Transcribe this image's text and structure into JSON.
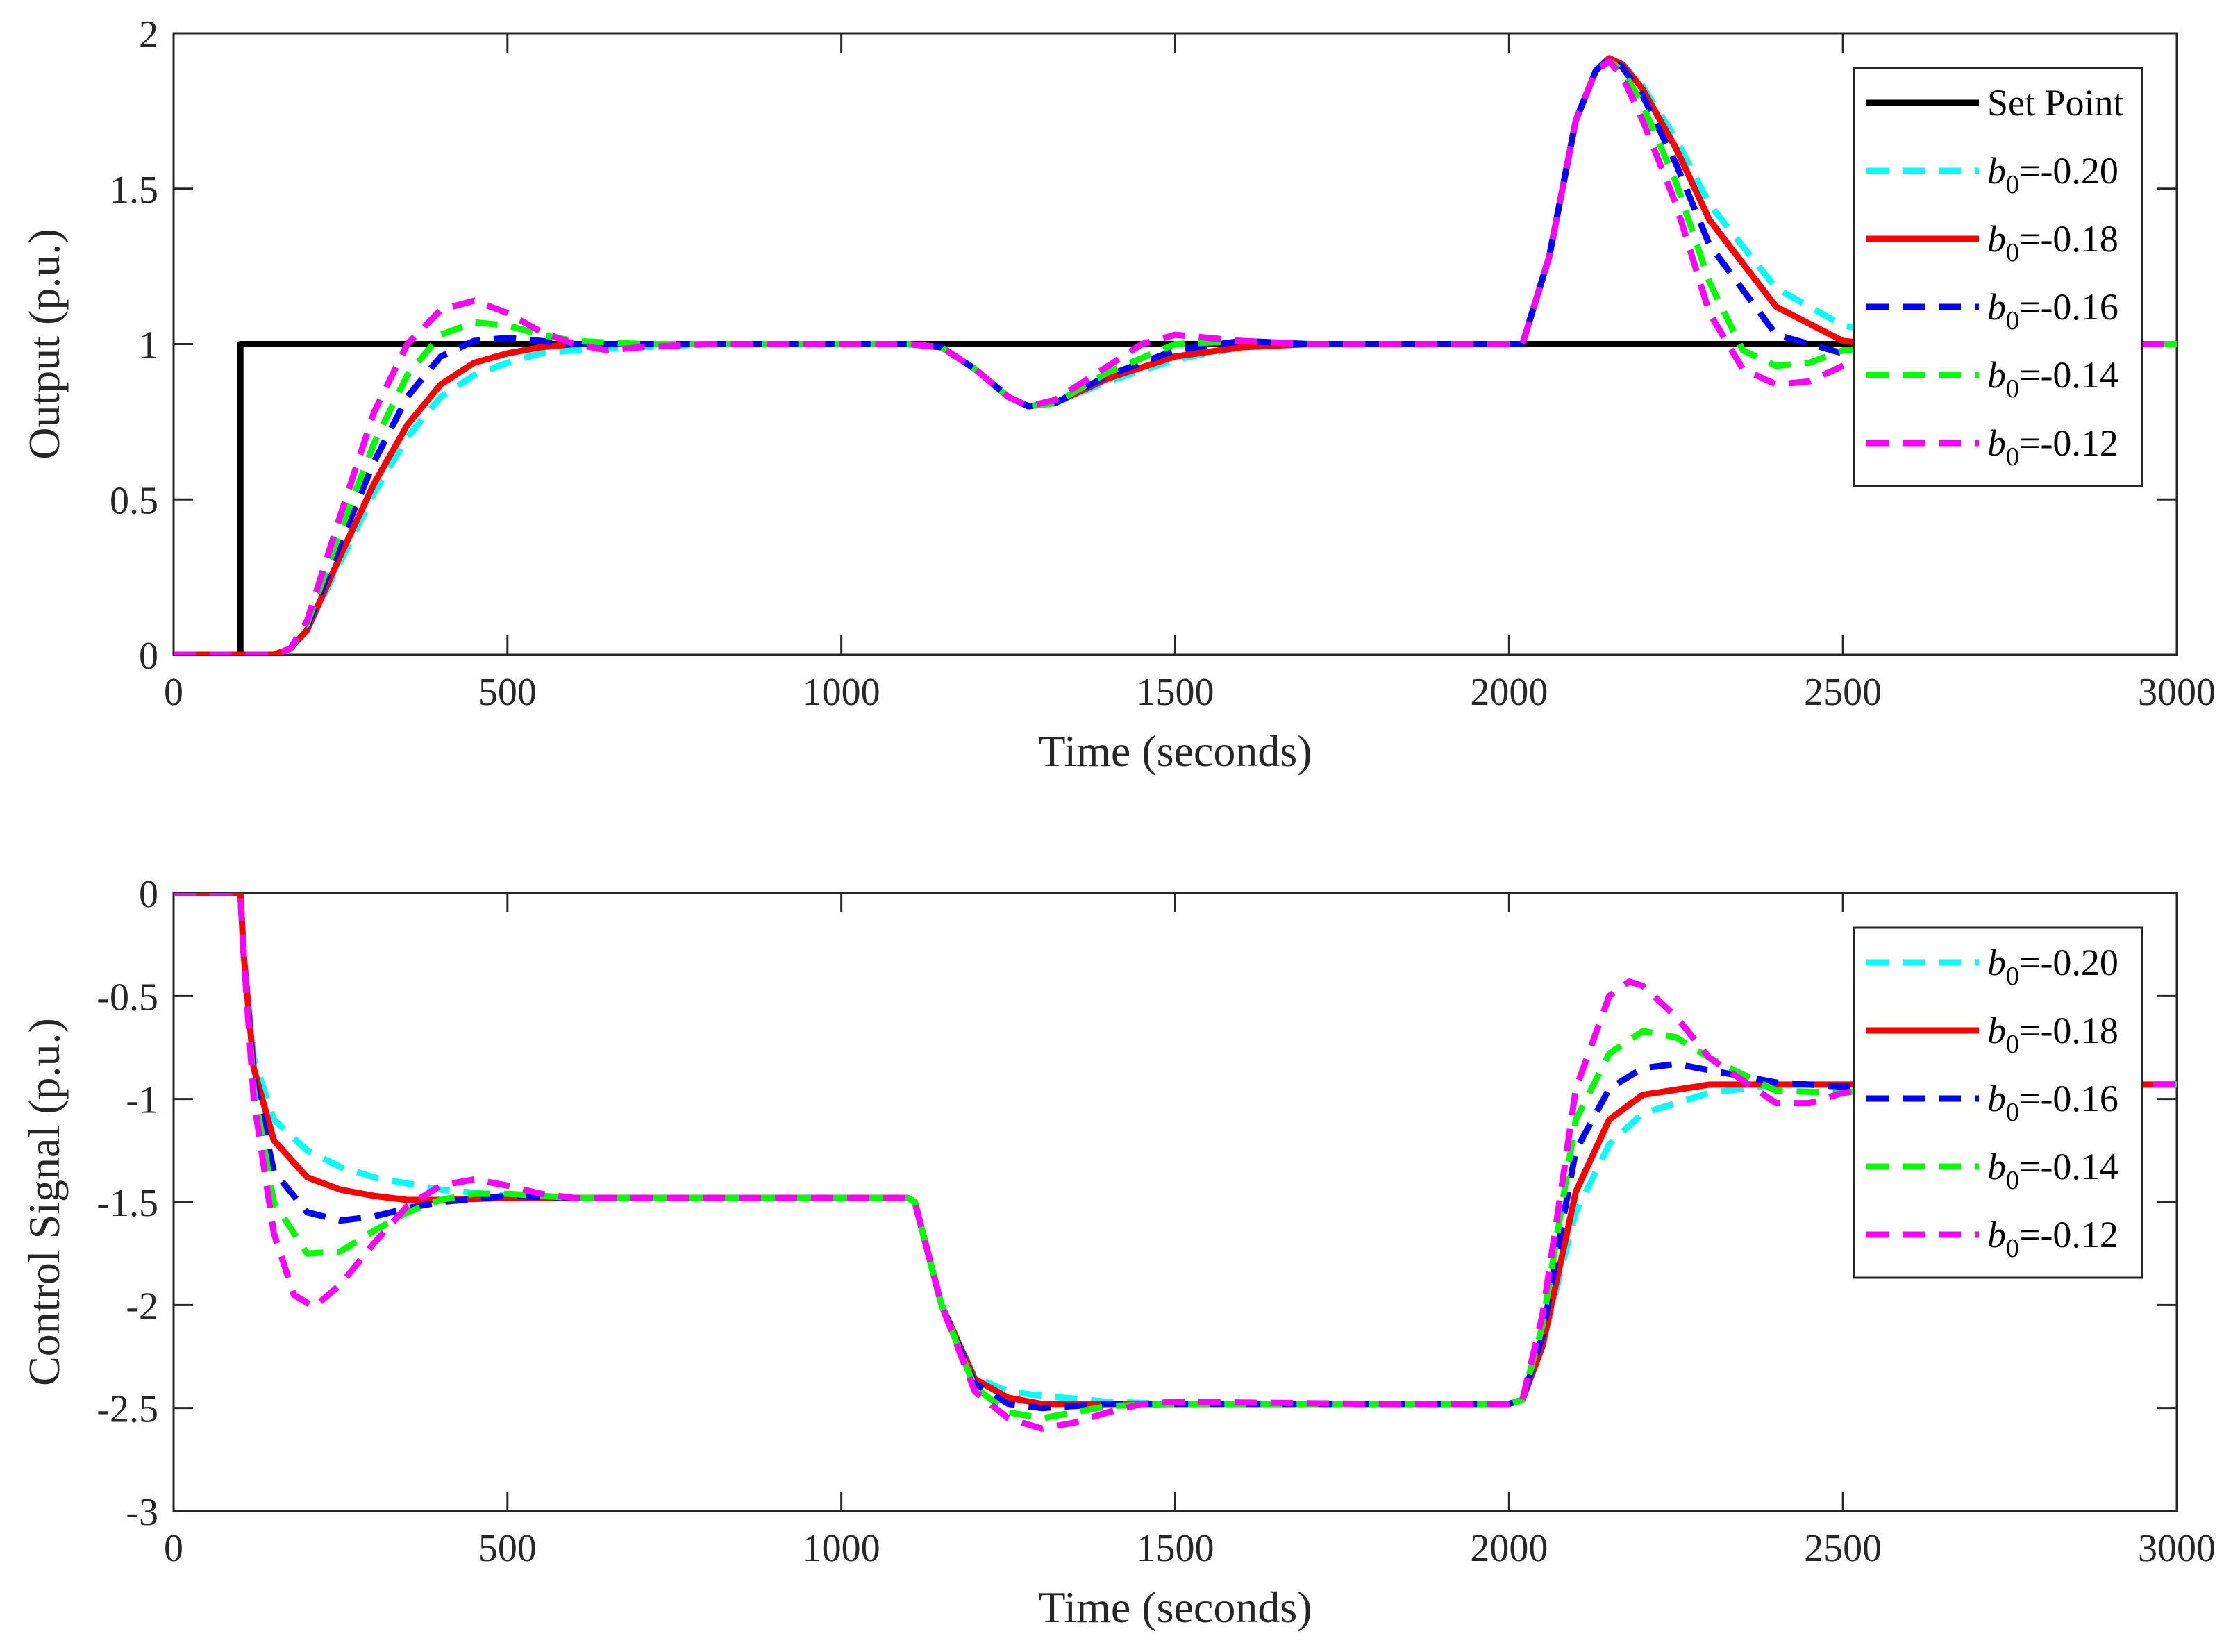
{
  "chart_data": [
    {
      "type": "line",
      "id": "output",
      "xlabel": "Time (seconds)",
      "ylabel": "Output (p.u.)",
      "xlim": [
        0,
        3000
      ],
      "ylim": [
        0,
        2
      ],
      "xticks": [
        0,
        500,
        1000,
        1500,
        2000,
        2500,
        3000
      ],
      "yticks": [
        0,
        0.5,
        1,
        1.5,
        2
      ],
      "xtick_labels": [
        "0",
        "500",
        "1000",
        "1500",
        "2000",
        "2500",
        "3000"
      ],
      "ytick_labels": [
        "0",
        "0.5",
        "1",
        "1.5",
        "2"
      ],
      "grid": false,
      "legend_position": "top-right",
      "series": [
        {
          "name": "Set Point",
          "legend_var": "",
          "legend_sub": "",
          "legend_val": "Set Point",
          "color": "#000000",
          "style": "solid",
          "x": [
            0,
            100,
            100,
            3000
          ],
          "y": [
            0,
            0,
            1,
            1
          ]
        },
        {
          "name": "b0=-0.20",
          "legend_var": "b",
          "legend_sub": "0",
          "legend_val": "=-0.20",
          "color": "#00FFFF",
          "style": "dashed",
          "x": [
            0,
            150,
            175,
            200,
            250,
            300,
            350,
            400,
            450,
            500,
            550,
            600,
            700,
            800,
            900,
            1000,
            1100,
            1150,
            1200,
            1250,
            1280,
            1320,
            1400,
            1500,
            1600,
            1700,
            1800,
            1900,
            2000,
            2020,
            2060,
            2100,
            2130,
            2150,
            2170,
            2200,
            2250,
            2300,
            2400,
            2500,
            2600,
            2800,
            3000
          ],
          "y": [
            0,
            0,
            0.02,
            0.08,
            0.3,
            0.52,
            0.7,
            0.83,
            0.9,
            0.94,
            0.97,
            0.98,
            0.99,
            1.0,
            1.0,
            1.0,
            1.0,
            0.99,
            0.92,
            0.83,
            0.8,
            0.81,
            0.88,
            0.95,
            0.99,
            1.0,
            1.0,
            1.0,
            1.0,
            1.0,
            1.28,
            1.72,
            1.88,
            1.92,
            1.9,
            1.83,
            1.66,
            1.45,
            1.18,
            1.06,
            1.02,
            1.0,
            1.0
          ]
        },
        {
          "name": "b0=-0.18",
          "legend_var": "b",
          "legend_sub": "0",
          "legend_val": "=-0.18",
          "color": "#FF0000",
          "style": "solid",
          "x": [
            0,
            150,
            175,
            200,
            250,
            300,
            350,
            400,
            450,
            500,
            550,
            600,
            700,
            800,
            900,
            1000,
            1100,
            1150,
            1200,
            1250,
            1280,
            1320,
            1400,
            1500,
            1600,
            1700,
            1800,
            1900,
            2000,
            2020,
            2060,
            2100,
            2130,
            2150,
            2170,
            2200,
            2250,
            2300,
            2400,
            2500,
            2600,
            2800,
            3000
          ],
          "y": [
            0,
            0,
            0.02,
            0.08,
            0.32,
            0.55,
            0.74,
            0.87,
            0.94,
            0.97,
            0.99,
            1.0,
            1.0,
            1.0,
            1.0,
            1.0,
            1.0,
            0.99,
            0.92,
            0.83,
            0.8,
            0.81,
            0.89,
            0.96,
            0.99,
            1.0,
            1.0,
            1.0,
            1.0,
            1.0,
            1.28,
            1.72,
            1.88,
            1.92,
            1.9,
            1.82,
            1.63,
            1.4,
            1.12,
            1.01,
            0.99,
            1.0,
            1.0
          ]
        },
        {
          "name": "b0=-0.16",
          "legend_var": "b",
          "legend_sub": "0",
          "legend_val": "=-0.16",
          "color": "#0000FF",
          "style": "dashed",
          "x": [
            0,
            150,
            175,
            200,
            250,
            300,
            350,
            400,
            450,
            500,
            550,
            600,
            700,
            800,
            900,
            1000,
            1100,
            1150,
            1200,
            1250,
            1280,
            1320,
            1400,
            1500,
            1600,
            1700,
            1800,
            1900,
            2000,
            2020,
            2060,
            2100,
            2130,
            2150,
            2170,
            2200,
            2250,
            2300,
            2400,
            2500,
            2600,
            2800,
            3000
          ],
          "y": [
            0,
            0,
            0.02,
            0.09,
            0.36,
            0.62,
            0.83,
            0.96,
            1.01,
            1.02,
            1.01,
            1.0,
            1.0,
            1.0,
            1.0,
            1.0,
            1.0,
            0.99,
            0.92,
            0.83,
            0.8,
            0.81,
            0.9,
            0.98,
            1.01,
            1.0,
            1.0,
            1.0,
            1.0,
            1.0,
            1.28,
            1.72,
            1.88,
            1.92,
            1.89,
            1.8,
            1.58,
            1.32,
            1.03,
            0.97,
            0.99,
            1.0,
            1.0
          ]
        },
        {
          "name": "b0=-0.14",
          "legend_var": "b",
          "legend_sub": "0",
          "legend_val": "=-0.14",
          "color": "#00FF00",
          "style": "dashed",
          "x": [
            0,
            150,
            175,
            200,
            250,
            300,
            350,
            400,
            450,
            500,
            550,
            600,
            700,
            800,
            900,
            1000,
            1100,
            1150,
            1200,
            1250,
            1280,
            1320,
            1400,
            1500,
            1600,
            1700,
            1800,
            1900,
            2000,
            2020,
            2060,
            2100,
            2130,
            2150,
            2170,
            2200,
            2250,
            2300,
            2350,
            2400,
            2450,
            2500,
            2600,
            2800,
            3000
          ],
          "y": [
            0,
            0,
            0.02,
            0.1,
            0.4,
            0.68,
            0.9,
            1.03,
            1.07,
            1.06,
            1.03,
            1.01,
            1.0,
            1.0,
            1.0,
            1.0,
            1.0,
            0.99,
            0.92,
            0.83,
            0.8,
            0.81,
            0.91,
            1.0,
            1.01,
            1.0,
            1.0,
            1.0,
            1.0,
            1.0,
            1.28,
            1.72,
            1.88,
            1.91,
            1.88,
            1.77,
            1.52,
            1.2,
            0.98,
            0.93,
            0.94,
            0.98,
            1.0,
            1.0,
            1.0
          ]
        },
        {
          "name": "b0=-0.12",
          "legend_var": "b",
          "legend_sub": "0",
          "legend_val": "=-0.12",
          "color": "#FF00FF",
          "style": "dashed",
          "x": [
            0,
            150,
            175,
            200,
            250,
            300,
            350,
            400,
            450,
            500,
            550,
            600,
            650,
            700,
            800,
            900,
            1000,
            1100,
            1150,
            1200,
            1250,
            1280,
            1320,
            1400,
            1450,
            1500,
            1550,
            1600,
            1700,
            1800,
            1900,
            2000,
            2020,
            2060,
            2100,
            2130,
            2150,
            2170,
            2200,
            2250,
            2300,
            2350,
            2400,
            2450,
            2500,
            2550,
            2600,
            2800,
            3000
          ],
          "y": [
            0,
            0,
            0.02,
            0.11,
            0.45,
            0.78,
            1.0,
            1.11,
            1.14,
            1.1,
            1.04,
            1.0,
            0.98,
            0.99,
            1.0,
            1.0,
            1.0,
            1.0,
            0.99,
            0.92,
            0.83,
            0.8,
            0.82,
            0.93,
            1.0,
            1.03,
            1.02,
            1.01,
            1.0,
            1.0,
            1.0,
            1.0,
            1.0,
            1.28,
            1.72,
            1.88,
            1.91,
            1.86,
            1.72,
            1.45,
            1.1,
            0.92,
            0.87,
            0.88,
            0.93,
            0.98,
            1.0,
            1.0,
            1.0
          ]
        }
      ],
      "legend_items": [
        "Set Point",
        "b0=-0.20",
        "b0=-0.18",
        "b0=-0.16",
        "b0=-0.14",
        "b0=-0.12"
      ]
    },
    {
      "type": "line",
      "id": "control",
      "xlabel": "Time (seconds)",
      "ylabel": "Control Signal (p.u.)",
      "xlim": [
        0,
        3000
      ],
      "ylim": [
        -3,
        0
      ],
      "xticks": [
        0,
        500,
        1000,
        1500,
        2000,
        2500,
        3000
      ],
      "yticks": [
        -3,
        -2.5,
        -2,
        -1.5,
        -1,
        -0.5,
        0
      ],
      "xtick_labels": [
        "0",
        "500",
        "1000",
        "1500",
        "2000",
        "2500",
        "3000"
      ],
      "ytick_labels": [
        "-3",
        "-2.5",
        "-2",
        "-1.5",
        "-1",
        "-0.5",
        "0"
      ],
      "grid": false,
      "legend_position": "top-right",
      "series": [
        {
          "name": "b0=-0.20",
          "legend_var": "b",
          "legend_sub": "0",
          "legend_val": "=-0.20",
          "color": "#00FFFF",
          "style": "dashed",
          "x": [
            0,
            100,
            105,
            120,
            150,
            200,
            250,
            300,
            400,
            500,
            600,
            1000,
            1100,
            1110,
            1150,
            1200,
            1250,
            1300,
            1400,
            1500,
            1800,
            2000,
            2020,
            2050,
            2080,
            2100,
            2150,
            2200,
            2300,
            2400,
            2500,
            2600,
            3000
          ],
          "y": [
            0,
            0,
            -0.3,
            -0.8,
            -1.1,
            -1.25,
            -1.33,
            -1.38,
            -1.44,
            -1.47,
            -1.48,
            -1.48,
            -1.48,
            -1.5,
            -2.0,
            -2.35,
            -2.42,
            -2.44,
            -2.47,
            -2.48,
            -2.48,
            -2.48,
            -2.46,
            -2.2,
            -1.8,
            -1.55,
            -1.22,
            -1.07,
            -0.97,
            -0.93,
            -0.93,
            -0.93,
            -0.93
          ]
        },
        {
          "name": "b0=-0.18",
          "legend_var": "b",
          "legend_sub": "0",
          "legend_val": "=-0.18",
          "color": "#FF0000",
          "style": "solid",
          "x": [
            0,
            100,
            105,
            120,
            150,
            200,
            250,
            300,
            350,
            400,
            500,
            600,
            1000,
            1100,
            1110,
            1150,
            1200,
            1250,
            1300,
            1400,
            1500,
            1800,
            2000,
            2020,
            2050,
            2080,
            2100,
            2150,
            2200,
            2300,
            2400,
            2500,
            2600,
            3000
          ],
          "y": [
            0,
            0,
            -0.3,
            -0.85,
            -1.2,
            -1.38,
            -1.44,
            -1.47,
            -1.49,
            -1.49,
            -1.48,
            -1.48,
            -1.48,
            -1.48,
            -1.5,
            -2.0,
            -2.36,
            -2.45,
            -2.48,
            -2.48,
            -2.48,
            -2.48,
            -2.48,
            -2.46,
            -2.2,
            -1.75,
            -1.45,
            -1.1,
            -0.98,
            -0.93,
            -0.93,
            -0.93,
            -0.93,
            -0.93
          ]
        },
        {
          "name": "b0=-0.16",
          "legend_var": "b",
          "legend_sub": "0",
          "legend_val": "=-0.16",
          "color": "#0000FF",
          "style": "dashed",
          "x": [
            0,
            100,
            105,
            120,
            150,
            200,
            250,
            300,
            350,
            400,
            500,
            600,
            1000,
            1100,
            1110,
            1150,
            1200,
            1250,
            1300,
            1350,
            1400,
            1500,
            1800,
            2000,
            2020,
            2050,
            2080,
            2100,
            2150,
            2200,
            2250,
            2300,
            2400,
            2500,
            2600,
            3000
          ],
          "y": [
            0,
            0,
            -0.3,
            -0.9,
            -1.35,
            -1.55,
            -1.59,
            -1.57,
            -1.53,
            -1.5,
            -1.47,
            -1.48,
            -1.48,
            -1.48,
            -1.5,
            -2.0,
            -2.38,
            -2.48,
            -2.5,
            -2.49,
            -2.48,
            -2.48,
            -2.48,
            -2.48,
            -2.46,
            -2.15,
            -1.6,
            -1.25,
            -0.95,
            -0.85,
            -0.83,
            -0.86,
            -0.92,
            -0.94,
            -0.93,
            -0.93
          ]
        },
        {
          "name": "b0=-0.14",
          "legend_var": "b",
          "legend_sub": "0",
          "legend_val": "=-0.14",
          "color": "#00FF00",
          "style": "dashed",
          "x": [
            0,
            100,
            105,
            120,
            150,
            200,
            250,
            300,
            350,
            400,
            450,
            500,
            600,
            1000,
            1100,
            1110,
            1150,
            1200,
            1250,
            1300,
            1350,
            1400,
            1500,
            1800,
            2000,
            2020,
            2050,
            2080,
            2100,
            2150,
            2200,
            2250,
            2300,
            2400,
            2500,
            2600,
            3000
          ],
          "y": [
            0,
            0,
            -0.3,
            -0.95,
            -1.5,
            -1.75,
            -1.74,
            -1.64,
            -1.55,
            -1.49,
            -1.46,
            -1.46,
            -1.48,
            -1.48,
            -1.48,
            -1.5,
            -2.0,
            -2.4,
            -2.52,
            -2.55,
            -2.52,
            -2.49,
            -2.48,
            -2.48,
            -2.48,
            -2.46,
            -2.1,
            -1.5,
            -1.1,
            -0.78,
            -0.67,
            -0.7,
            -0.8,
            -0.96,
            -0.97,
            -0.93,
            -0.93
          ]
        },
        {
          "name": "b0=-0.12",
          "legend_var": "b",
          "legend_sub": "0",
          "legend_val": "=-0.12",
          "color": "#FF00FF",
          "style": "dashed",
          "x": [
            0,
            100,
            105,
            120,
            150,
            180,
            210,
            250,
            300,
            350,
            400,
            450,
            500,
            550,
            600,
            1000,
            1100,
            1110,
            1150,
            1200,
            1250,
            1300,
            1350,
            1400,
            1450,
            1500,
            1800,
            2000,
            2020,
            2050,
            2080,
            2100,
            2150,
            2180,
            2200,
            2250,
            2300,
            2400,
            2450,
            2500,
            2600,
            3000
          ],
          "y": [
            0,
            0,
            -0.3,
            -1.0,
            -1.65,
            -1.95,
            -2.01,
            -1.9,
            -1.7,
            -1.52,
            -1.42,
            -1.39,
            -1.42,
            -1.46,
            -1.48,
            -1.48,
            -1.48,
            -1.5,
            -2.0,
            -2.42,
            -2.55,
            -2.6,
            -2.57,
            -2.52,
            -2.48,
            -2.47,
            -2.48,
            -2.48,
            -2.46,
            -2.05,
            -1.4,
            -0.95,
            -0.5,
            -0.43,
            -0.45,
            -0.6,
            -0.8,
            -1.02,
            -1.02,
            -0.97,
            -0.93,
            -0.93
          ]
        }
      ],
      "legend_items": [
        "b0=-0.20",
        "b0=-0.18",
        "b0=-0.16",
        "b0=-0.14",
        "b0=-0.12"
      ]
    }
  ]
}
